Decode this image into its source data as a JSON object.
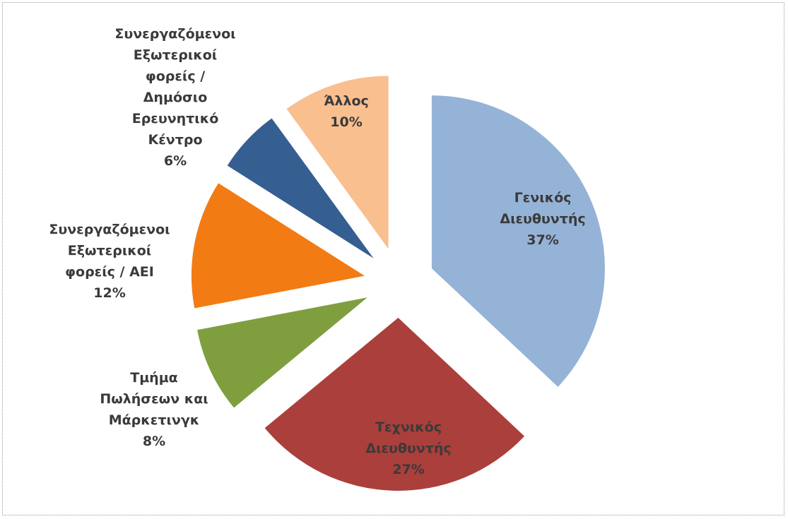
{
  "chart_data": {
    "type": "pie",
    "categories": [
      "Γενικός Διευθυντής",
      "Τεχνικός Διευθυντής",
      "Τμήμα Πωλήσεων και Μάρκετινγκ",
      "Συνεργαζόμενοι Εξωτερικοί φορείς / ΑΕΙ",
      "Συνεργαζόμενοι Εξωτερικοί φορείς / Δημόσιο Ερευνητικό Κέντρο",
      "Άλλος"
    ],
    "values": [
      37,
      27,
      8,
      12,
      6,
      10
    ],
    "value_labels": [
      "37%",
      "27%",
      "8%",
      "12%",
      "6%",
      "10%"
    ],
    "colors": [
      "#95b3d7",
      "#ab3f3b",
      "#7f9f3f",
      "#f27b14",
      "#355e91",
      "#f9bf8f"
    ]
  }
}
